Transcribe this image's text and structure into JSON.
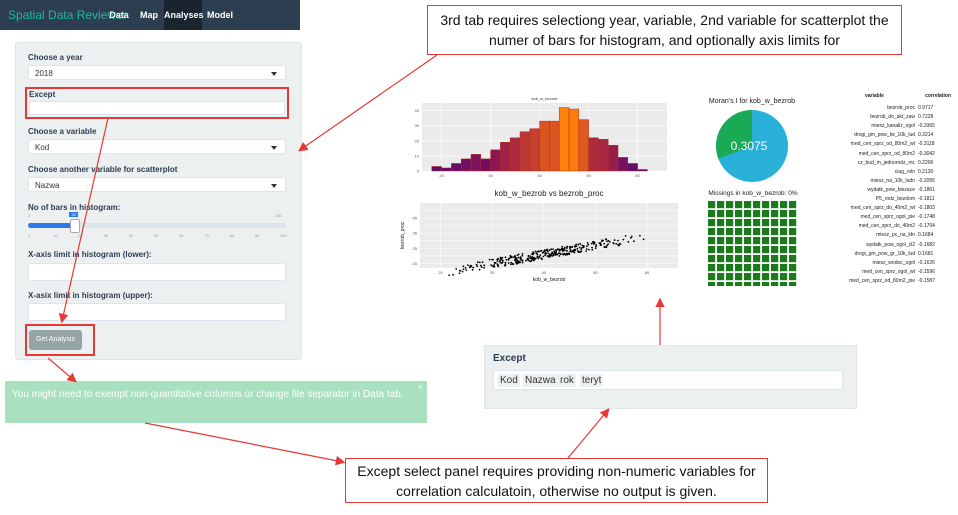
{
  "navbar": {
    "brand": "Spatial Data Reviewer",
    "tabs": [
      {
        "label": "Data",
        "active": false
      },
      {
        "label": "Map",
        "active": false
      },
      {
        "label": "Analyses",
        "active": true
      },
      {
        "label": "Model",
        "active": false
      }
    ]
  },
  "sidebar": {
    "year_label": "Choose a year",
    "year_value": "2018",
    "except_label": "Except",
    "variable_label": "Choose a variable",
    "variable_value": "Kod",
    "variable2_label": "Choose another variable for scatterplot",
    "variable2_value": "Nazwa",
    "bars_label": "No of bars in histogram:",
    "slider": {
      "min": "2",
      "max": "100",
      "value": "20",
      "fraction": 0.18,
      "ticks": [
        "2",
        "10",
        "20",
        "30",
        "40",
        "50",
        "60",
        "70",
        "80",
        "90",
        "100"
      ]
    },
    "xlower_label": "X-axis limit in histogram (lower):",
    "xupper_label": "X-asix limit in histogram (upper):",
    "button_label": "Get Analysis"
  },
  "alert_text": "You might need to exempt non-quantitative columns or change file separator in Data tab.",
  "alert_close": "×",
  "annotations": {
    "top_note": "3rd tab requires selectiong year, variable, 2nd variable for scatterplot the numer of bars for histogram, and optionally axis limits for",
    "bottom_note": "Except select panel requires providing non-numeric variables for correlation calculatoin, otherwise no output is given."
  },
  "except_panel": {
    "label": "Except",
    "chips": [
      "Kod",
      "Nazwa",
      "rok",
      "teryt"
    ]
  },
  "histogram": {
    "title": "kob_w_bezrob",
    "chart_data": {
      "type": "bar",
      "x": [
        19,
        21,
        23,
        25,
        27,
        29,
        31,
        33,
        35,
        37,
        39,
        41,
        43,
        45,
        47,
        49,
        51,
        53,
        55,
        57,
        59,
        61,
        63
      ],
      "values": [
        3,
        2,
        5,
        8,
        11,
        8,
        14,
        19,
        22,
        26,
        28,
        33,
        33,
        42,
        41,
        34,
        22,
        21,
        17,
        9,
        5,
        1,
        0
      ],
      "xticks": [
        "20",
        "30",
        "40",
        "50",
        "60"
      ],
      "yticks": [
        "0",
        "10",
        "20",
        "30",
        "40"
      ],
      "ylim": [
        0,
        45
      ]
    }
  },
  "scatter": {
    "title": "kob_w_bezrob vs bezrob_proc",
    "xlabel": "kob_w_bezrob",
    "ylabel": "bezrob_proc",
    "chart_data": {
      "type": "scatter",
      "xlim": [
        16,
        66
      ],
      "ylim": [
        12,
        55
      ],
      "xticks": [
        "20",
        "30",
        "40",
        "50",
        "60"
      ],
      "yticks": [
        "15",
        "20",
        "25",
        "30",
        "35",
        "40",
        "45",
        "50"
      ],
      "trend": {
        "slope": 0.6,
        "intercept": -3.0
      }
    }
  },
  "moran": {
    "title": "Moran's I for kob_w_bezrob",
    "value": "0.3075",
    "fraction": 0.3075,
    "colors": {
      "value": "#1aaa55",
      "rest": "#29b0d8"
    }
  },
  "missings": {
    "title": "Missings in kob_w_bezrob: 0%",
    "grid": 10,
    "color": "#1c7a1c"
  },
  "correlation": {
    "headers": [
      "variable",
      "correlation"
    ],
    "rows": [
      [
        "bezrob_proc",
        "0.9717"
      ],
      [
        "bezrob_do_akt_zaw",
        "0.7228"
      ],
      [
        "miesz_kanaliz_ogol",
        "-0.3365"
      ],
      [
        "drogi_gm_pow_tw_10k_lud",
        "0.3214"
      ],
      [
        "med_cen_sprz_od_80m2_wt",
        "-0.3118"
      ],
      [
        "med_cen_sprz_od_80m2",
        "-0.3042"
      ],
      [
        "cz_bud_m_jednorodz_mc",
        "0.2206"
      ],
      [
        "ciag_roln",
        "0.2130"
      ],
      [
        "miesz_na_10k_ludn",
        "-0.2055"
      ],
      [
        "wydatk_pow_biezace",
        "-0.1861"
      ],
      [
        "P5_rodz_bezdom",
        "-0.1811"
      ],
      [
        "med_cen_sprz_do_40m2_wt",
        "-0.1803"
      ],
      [
        "med_cen_sprz_ogol_pie",
        "-0.1748"
      ],
      [
        "med_cen_sprz_do_40m2",
        "-0.1704"
      ],
      [
        "miesz_pc_na_ldn",
        "0.1684"
      ],
      [
        "wydatk_pow_ogol_zl2",
        "-0.1682"
      ],
      [
        "drogi_gm_pow_gr_10k_lud",
        "0.1681"
      ],
      [
        "miesz_wodoc_ogol",
        "-0.1626"
      ],
      [
        "med_cen_sprz_ogol_wt",
        "-0.1596"
      ],
      [
        "med_cen_sprz_od_80m2_pie",
        "-0.1587"
      ]
    ]
  }
}
